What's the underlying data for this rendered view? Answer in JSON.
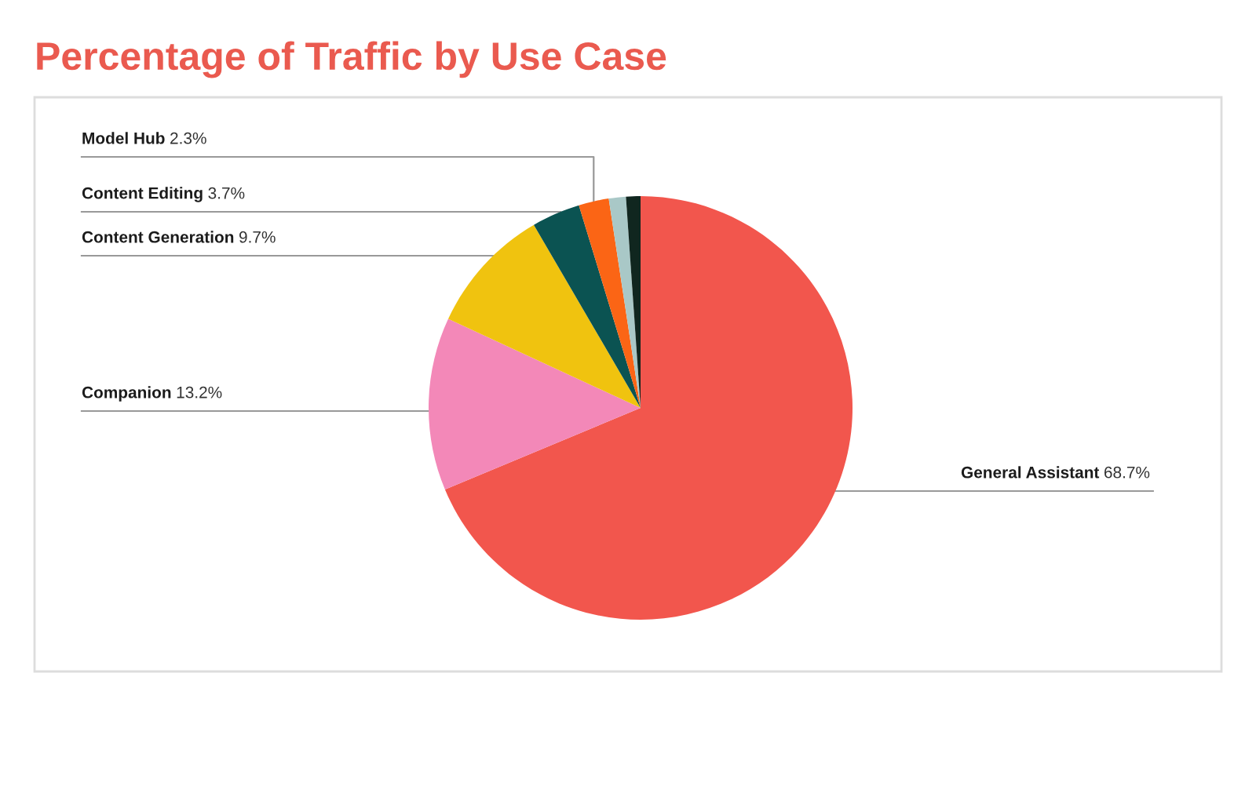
{
  "chart_data": {
    "type": "pie",
    "title": "Percentage of Traffic by Use Case",
    "categories": [
      "General Assistant",
      "Companion",
      "Content Generation",
      "Content Editing",
      "Model Hub",
      null,
      null
    ],
    "values": [
      68.7,
      13.2,
      9.7,
      3.7,
      2.3,
      1.3,
      1.1
    ],
    "value_labels": [
      "68.7%",
      "13.2%",
      "9.7%",
      "3.7%",
      "2.3%",
      null,
      null
    ],
    "colors": [
      "#f2564d",
      "#f388b8",
      "#f0c30f",
      "#0b5352",
      "#fb6515",
      "#a9c8c7",
      "#10261f"
    ]
  }
}
